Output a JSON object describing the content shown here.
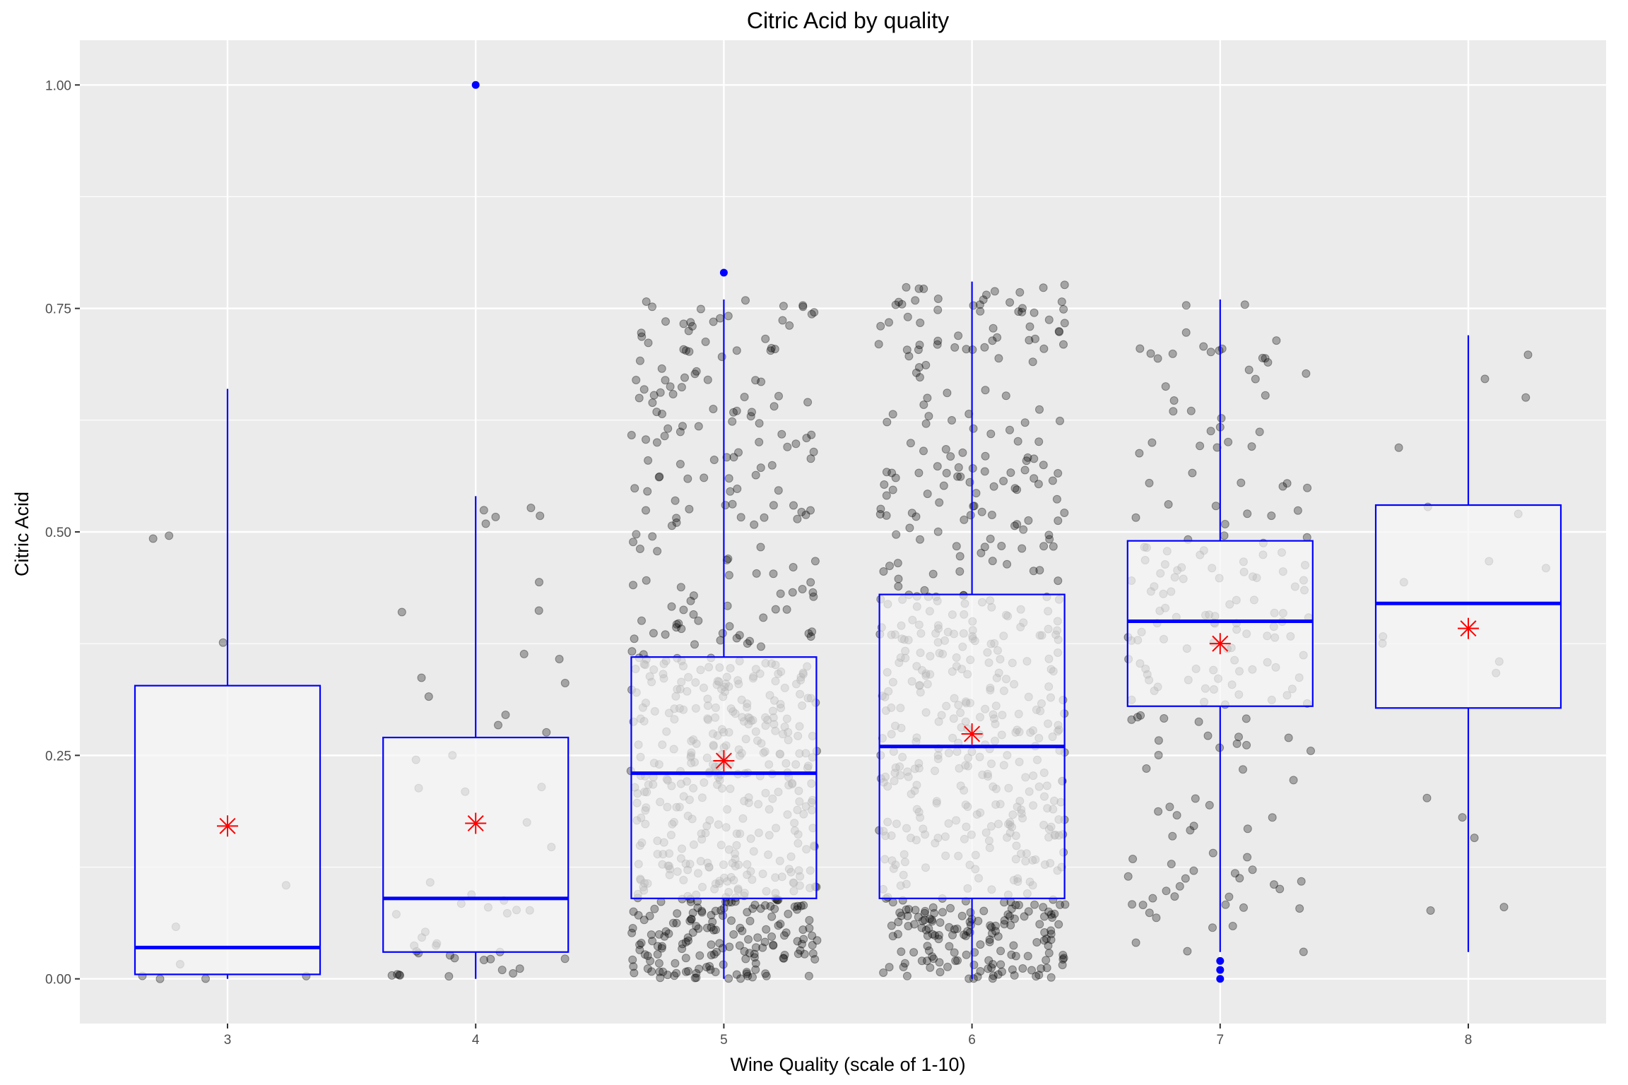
{
  "chart_data": {
    "type": "boxplot",
    "title": "Citric Acid by quality",
    "xlabel": "Wine Quality (scale of 1-10)",
    "ylabel": "Citric Acid",
    "categories": [
      "3",
      "4",
      "5",
      "6",
      "7",
      "8"
    ],
    "yticks": [
      "0.00",
      "0.25",
      "0.50",
      "0.75",
      "1.00"
    ],
    "ylim": [
      -0.05,
      1.05
    ],
    "grid": true,
    "boxes": [
      {
        "category": "3",
        "q1": 0.005,
        "median": 0.035,
        "q3": 0.328,
        "whisker_low": 0.0,
        "whisker_high": 0.66,
        "mean": 0.171,
        "outliers": []
      },
      {
        "category": "4",
        "q1": 0.03,
        "median": 0.09,
        "q3": 0.27,
        "whisker_low": 0.0,
        "whisker_high": 0.54,
        "mean": 0.174,
        "outliers": [
          1.0
        ]
      },
      {
        "category": "5",
        "q1": 0.09,
        "median": 0.23,
        "q3": 0.36,
        "whisker_low": 0.0,
        "whisker_high": 0.76,
        "mean": 0.244,
        "outliers": [
          0.79
        ]
      },
      {
        "category": "6",
        "q1": 0.09,
        "median": 0.26,
        "q3": 0.43,
        "whisker_low": 0.0,
        "whisker_high": 0.78,
        "mean": 0.274,
        "outliers": []
      },
      {
        "category": "7",
        "q1": 0.305,
        "median": 0.4,
        "q3": 0.49,
        "whisker_low": 0.03,
        "whisker_high": 0.76,
        "mean": 0.375,
        "outliers": [
          0.0,
          0.01,
          0.02
        ]
      },
      {
        "category": "8",
        "q1": 0.303,
        "median": 0.42,
        "q3": 0.53,
        "whisker_low": 0.03,
        "whisker_high": 0.72,
        "mean": 0.392,
        "outliers": []
      }
    ],
    "jitter_counts": [
      10,
      53,
      681,
      638,
      199,
      18
    ],
    "colors": {
      "panel": "#ebebeb",
      "grid_major": "#ffffff",
      "box_line": "#0000ff",
      "box_fill": "#f5f5f5",
      "mean_marker": "#ff0000",
      "points": "#000000"
    }
  }
}
